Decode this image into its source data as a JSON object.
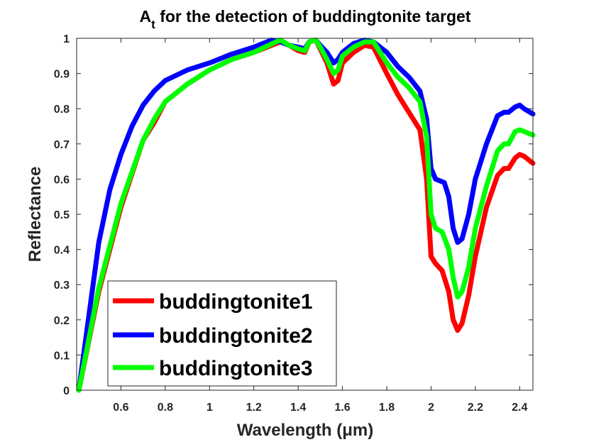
{
  "chart_data": {
    "type": "line",
    "title_main": "A",
    "title_sub": "t",
    "title_rest": " for the detection of buddingtonite target",
    "xlabel": "Wavelength (μm)",
    "ylabel": "Reflectance",
    "xlim": [
      0.4,
      2.46
    ],
    "ylim": [
      0,
      1
    ],
    "xticks": [
      0.6,
      0.8,
      1,
      1.2,
      1.4,
      1.6,
      1.8,
      2,
      2.2,
      2.4
    ],
    "xtick_labels": [
      "0.6",
      "0.8",
      "1",
      "1.2",
      "1.4",
      "1.6",
      "1.8",
      "2",
      "2.2",
      "2.4"
    ],
    "yticks": [
      0,
      0.1,
      0.2,
      0.3,
      0.4,
      0.5,
      0.6,
      0.7,
      0.8,
      0.9,
      1
    ],
    "ytick_labels": [
      "0",
      "0.1",
      "0.2",
      "0.3",
      "0.4",
      "0.5",
      "0.6",
      "0.7",
      "0.8",
      "0.9",
      "1"
    ],
    "grid": false,
    "legend_position": "bottom-left",
    "series": [
      {
        "name": "buddingtonite1",
        "color": "#ff0000",
        "x": [
          0.41,
          0.5,
          0.6,
          0.7,
          0.75,
          0.8,
          0.9,
          1.0,
          1.1,
          1.2,
          1.3,
          1.32,
          1.36,
          1.4,
          1.43,
          1.45,
          1.48,
          1.5,
          1.53,
          1.56,
          1.58,
          1.6,
          1.65,
          1.7,
          1.74,
          1.8,
          1.85,
          1.9,
          1.95,
          1.98,
          2.0,
          2.02,
          2.05,
          2.08,
          2.1,
          2.12,
          2.14,
          2.17,
          2.2,
          2.25,
          2.3,
          2.33,
          2.35,
          2.38,
          2.4,
          2.42,
          2.46
        ],
        "y": [
          0.0,
          0.28,
          0.52,
          0.71,
          0.76,
          0.82,
          0.87,
          0.91,
          0.94,
          0.96,
          0.985,
          0.99,
          0.98,
          0.965,
          0.96,
          0.99,
          0.995,
          0.97,
          0.93,
          0.87,
          0.88,
          0.93,
          0.96,
          0.98,
          0.975,
          0.9,
          0.84,
          0.79,
          0.74,
          0.6,
          0.38,
          0.36,
          0.34,
          0.28,
          0.2,
          0.17,
          0.19,
          0.27,
          0.38,
          0.52,
          0.61,
          0.63,
          0.63,
          0.66,
          0.67,
          0.665,
          0.645
        ]
      },
      {
        "name": "buddingtonite2",
        "color": "#0000ff",
        "x": [
          0.41,
          0.5,
          0.55,
          0.6,
          0.65,
          0.7,
          0.75,
          0.8,
          0.9,
          1.0,
          1.1,
          1.2,
          1.28,
          1.32,
          1.36,
          1.4,
          1.43,
          1.45,
          1.48,
          1.5,
          1.53,
          1.56,
          1.58,
          1.6,
          1.65,
          1.7,
          1.74,
          1.8,
          1.85,
          1.9,
          1.95,
          1.98,
          2.0,
          2.02,
          2.06,
          2.08,
          2.1,
          2.12,
          2.14,
          2.17,
          2.2,
          2.25,
          2.3,
          2.33,
          2.35,
          2.38,
          2.4,
          2.42,
          2.46
        ],
        "y": [
          0.0,
          0.42,
          0.57,
          0.67,
          0.75,
          0.81,
          0.85,
          0.88,
          0.91,
          0.93,
          0.955,
          0.975,
          0.995,
          0.99,
          0.98,
          0.975,
          0.97,
          0.99,
          0.995,
          0.98,
          0.96,
          0.93,
          0.94,
          0.96,
          0.985,
          0.995,
          0.99,
          0.96,
          0.92,
          0.89,
          0.85,
          0.77,
          0.63,
          0.6,
          0.59,
          0.55,
          0.46,
          0.42,
          0.43,
          0.5,
          0.6,
          0.7,
          0.78,
          0.79,
          0.79,
          0.805,
          0.81,
          0.8,
          0.785
        ]
      },
      {
        "name": "buddingtonite3",
        "color": "#00ff00",
        "x": [
          0.41,
          0.5,
          0.6,
          0.7,
          0.75,
          0.8,
          0.9,
          1.0,
          1.1,
          1.2,
          1.3,
          1.32,
          1.36,
          1.4,
          1.43,
          1.45,
          1.48,
          1.5,
          1.53,
          1.56,
          1.58,
          1.6,
          1.65,
          1.7,
          1.74,
          1.8,
          1.85,
          1.9,
          1.95,
          1.98,
          2.0,
          2.02,
          2.05,
          2.08,
          2.1,
          2.12,
          2.14,
          2.17,
          2.2,
          2.25,
          2.3,
          2.33,
          2.35,
          2.38,
          2.4,
          2.42,
          2.46
        ],
        "y": [
          0.0,
          0.29,
          0.53,
          0.71,
          0.77,
          0.82,
          0.87,
          0.91,
          0.94,
          0.96,
          0.99,
          0.995,
          0.98,
          0.97,
          0.965,
          0.99,
          0.995,
          0.975,
          0.94,
          0.9,
          0.91,
          0.95,
          0.975,
          0.99,
          0.99,
          0.93,
          0.89,
          0.86,
          0.82,
          0.72,
          0.5,
          0.46,
          0.45,
          0.4,
          0.32,
          0.265,
          0.28,
          0.35,
          0.46,
          0.58,
          0.68,
          0.7,
          0.7,
          0.735,
          0.74,
          0.735,
          0.725
        ]
      }
    ]
  }
}
